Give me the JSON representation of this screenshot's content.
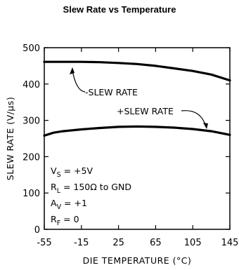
{
  "title": "Slew Rate vs Temperature",
  "chart_data": {
    "type": "line",
    "xlabel": "DIE TEMPERATURE (°C)",
    "ylabel": "SLEW RATE (V/μs)",
    "xlim": [
      -55,
      145
    ],
    "ylim": [
      0,
      500
    ],
    "xticks": [
      -55,
      -15,
      25,
      65,
      105,
      145
    ],
    "yticks": [
      0,
      100,
      200,
      300,
      400,
      500
    ],
    "grid": false,
    "series": [
      {
        "name": "-SLEW RATE",
        "x": [
          -55,
          -35,
          -15,
          5,
          25,
          45,
          65,
          85,
          105,
          125,
          145
        ],
        "y": [
          461,
          461,
          461,
          460,
          458,
          455,
          450,
          443,
          436,
          426,
          410
        ]
      },
      {
        "name": "+SLEW RATE",
        "x": [
          -55,
          -45,
          -35,
          -15,
          5,
          25,
          45,
          65,
          85,
          105,
          125,
          145
        ],
        "y": [
          258,
          266,
          270,
          275,
          279,
          282,
          283,
          282,
          280,
          276,
          270,
          260
        ]
      }
    ],
    "conditions": [
      {
        "sym": "V",
        "sub": "S",
        "rest": " = +5V"
      },
      {
        "sym": "R",
        "sub": "L",
        "rest": " = 150Ω  to GND"
      },
      {
        "sym": "A",
        "sub": "V",
        "rest": " = +1"
      },
      {
        "sym": "R",
        "sub": "F",
        "rest": " = 0"
      }
    ]
  }
}
